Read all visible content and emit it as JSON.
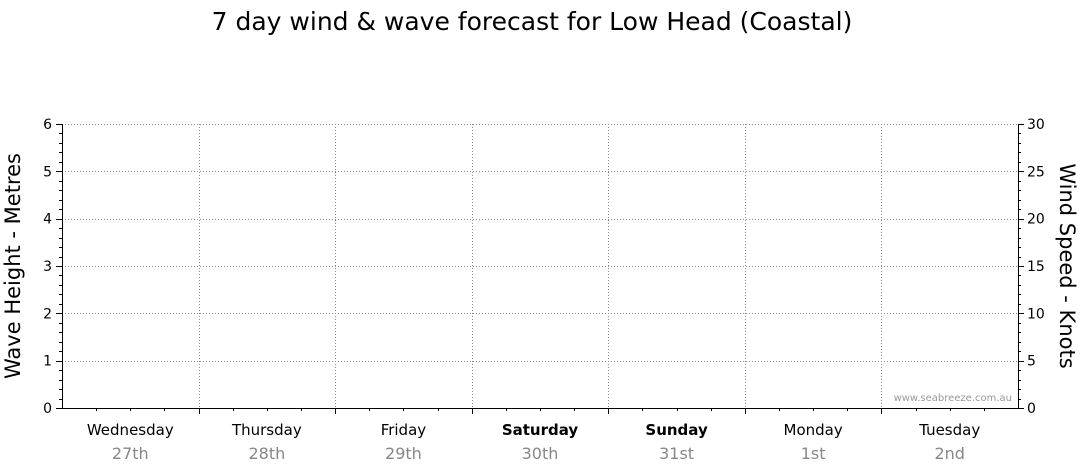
{
  "chart_data": {
    "type": "line",
    "title": "7 day wind & wave forecast for Low Head (Coastal)",
    "ylabel_left": "Wave Height - Metres",
    "ylabel_right": "Wind Speed - Knots",
    "ylim_left": [
      0,
      6
    ],
    "ylim_right": [
      0,
      30
    ],
    "yticks_left": [
      "0",
      "1",
      "2",
      "3",
      "4",
      "5",
      "6"
    ],
    "yticks_right": [
      "0",
      "5",
      "10",
      "15",
      "20",
      "25",
      "30"
    ],
    "grid": true,
    "categories": [
      {
        "day": "Wednesday",
        "date": "27th",
        "bold": false
      },
      {
        "day": "Thursday",
        "date": "28th",
        "bold": false
      },
      {
        "day": "Friday",
        "date": "29th",
        "bold": false
      },
      {
        "day": "Saturday",
        "date": "30th",
        "bold": true
      },
      {
        "day": "Sunday",
        "date": "31st",
        "bold": true
      },
      {
        "day": "Monday",
        "date": "1st",
        "bold": false
      },
      {
        "day": "Tuesday",
        "date": "2nd",
        "bold": false
      }
    ],
    "series": [],
    "watermark": "www.seabreeze.com.au"
  }
}
